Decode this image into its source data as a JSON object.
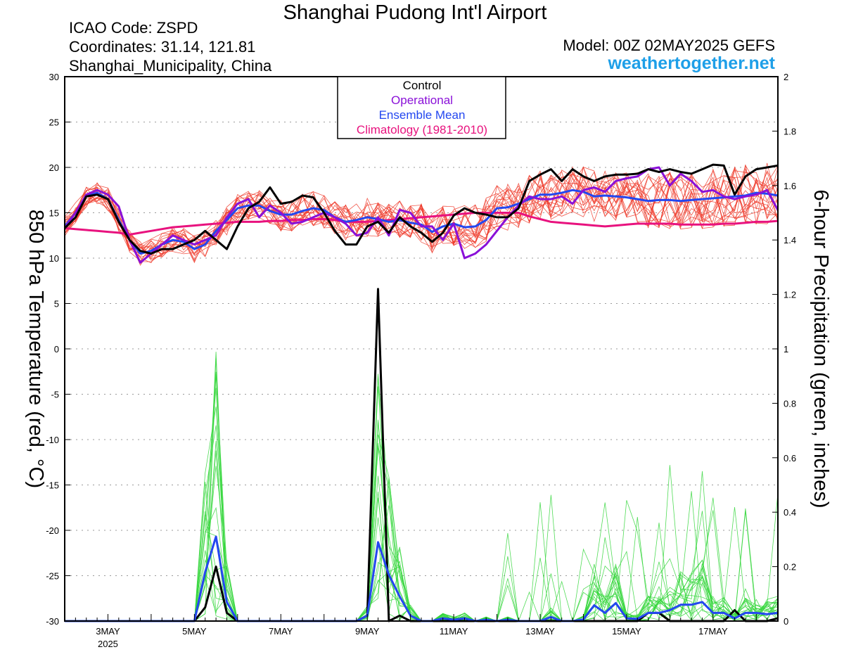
{
  "header": {
    "title": "Shanghai Pudong Int'l Airport",
    "icao": "ICAO Code: ZSPD",
    "coordinates": "Coordinates: 31.14, 121.81",
    "location": "Shanghai_Municipality, China",
    "model": "Model: 00Z 02MAY2025 GEFS",
    "site": "weathertogether.net"
  },
  "chart_data": {
    "type": "line",
    "start_date": "2025-05-02",
    "legend": {
      "placement": "top-center",
      "entries": [
        {
          "label": "Control",
          "color": "#000000"
        },
        {
          "label": "Operational",
          "color": "#8a10d8"
        },
        {
          "label": "Ensemble Mean",
          "color": "#2347f0"
        },
        {
          "label": "Climatology (1981-2010)",
          "color": "#e8127e"
        }
      ]
    },
    "left_axis": {
      "label": "850 hPa Temperature (red, °C)",
      "ylim": [
        -30,
        30
      ],
      "ticks": [
        -30,
        -25,
        -20,
        -15,
        -10,
        -5,
        0,
        5,
        10,
        15,
        20,
        25,
        30
      ]
    },
    "right_axis": {
      "label": "6-hour Precipitation (green, inches)",
      "ylim": [
        0,
        2
      ],
      "ticks": [
        0,
        0.2,
        0.4,
        0.6,
        0.8,
        1,
        1.2,
        1.4,
        1.6,
        1.8,
        2
      ]
    },
    "x_axis": {
      "xlim": [
        "2025-05-02 00Z",
        "2025-05-18 06Z"
      ],
      "step": "6-hour",
      "ticks": [
        {
          "label": "3MAY",
          "sublabel": "2025",
          "day": 1
        },
        {
          "label": "5MAY",
          "day": 3
        },
        {
          "label": "7MAY",
          "day": 5
        },
        {
          "label": "9MAY",
          "day": 7
        },
        {
          "label": "11MAY",
          "day": 9
        },
        {
          "label": "13MAY",
          "day": 11
        },
        {
          "label": "15MAY",
          "day": 13
        },
        {
          "label": "17MAY",
          "day": 15
        }
      ]
    },
    "grid": true,
    "colors": {
      "member_temp": "#ee3b2c",
      "member_precip": "#33d63a"
    },
    "series": [
      {
        "color": "#000000",
        "axis": "temp",
        "role": "control_temp",
        "values": [
          13.3,
          14.5,
          16.8,
          17.0,
          16.5,
          14.0,
          12.0,
          10.8,
          10.5,
          11.0,
          11.0,
          11.5,
          12.0,
          13.0,
          12.0,
          11.0,
          13.5,
          15.5,
          16.2,
          17.8,
          16.0,
          16.2,
          16.9,
          16.7,
          15.0,
          13.0,
          11.5,
          11.5,
          13.5,
          14.0,
          12.8,
          14.5,
          13.5,
          12.8,
          11.8,
          12.8,
          14.7,
          15.5,
          15.0,
          14.8,
          14.5,
          14.5,
          15.5,
          18.5,
          19.2,
          19.8,
          18.5,
          19.8,
          19.0,
          18.5,
          19.0,
          19.2,
          19.2,
          19.3,
          19.8,
          19.5,
          19.8,
          19.5,
          19.3,
          19.8,
          20.3,
          20.2,
          17.0,
          19.0,
          19.8,
          20.0,
          20.2
        ]
      },
      {
        "color": "#8a10d8",
        "axis": "temp",
        "role": "operational_temp",
        "values": [
          13.3,
          15.0,
          17.0,
          17.5,
          17.0,
          15.7,
          12.0,
          9.5,
          10.5,
          11.5,
          12.5,
          12.0,
          11.5,
          12.0,
          12.5,
          14.5,
          16.0,
          16.5,
          14.5,
          15.8,
          15.0,
          13.8,
          14.0,
          14.5,
          15.0,
          14.5,
          13.8,
          12.5,
          12.8,
          14.5,
          12.5,
          15.3,
          15.0,
          13.5,
          13.5,
          12.0,
          13.8,
          10.0,
          10.5,
          11.5,
          13.0,
          14.5,
          15.8,
          16.8,
          16.5,
          16.5,
          16.8,
          16.0,
          17.5,
          17.8,
          17.3,
          18.5,
          18.8,
          19.0,
          19.8,
          20.0,
          18.0,
          19.3,
          18.5,
          17.3,
          17.5,
          16.8,
          16.5,
          16.8,
          17.0,
          17.5,
          15.3
        ]
      },
      {
        "color": "#2347f0",
        "axis": "temp",
        "role": "ensemble_mean_temp",
        "values": [
          13.5,
          15.0,
          16.8,
          17.2,
          16.5,
          14.2,
          12.0,
          10.5,
          10.8,
          11.5,
          12.0,
          11.8,
          11.0,
          11.5,
          13.0,
          14.2,
          15.5,
          15.8,
          15.8,
          15.2,
          14.8,
          14.8,
          15.2,
          15.5,
          15.3,
          14.5,
          14.0,
          14.2,
          14.5,
          14.3,
          14.0,
          14.2,
          13.9,
          13.7,
          12.9,
          13.5,
          13.8,
          13.4,
          13.5,
          14.2,
          15.5,
          15.6,
          16.0,
          16.5,
          17.0,
          17.0,
          17.2,
          17.5,
          17.3,
          16.8,
          16.9,
          16.8,
          16.7,
          16.5,
          16.3,
          16.4,
          16.4,
          16.3,
          16.4,
          16.5,
          16.6,
          16.7,
          16.8,
          16.9,
          17.2,
          17.1,
          16.9
        ]
      },
      {
        "color": "#e8127e",
        "axis": "temp",
        "role": "climatology_temp",
        "values": [
          13.3,
          13.2,
          13.1,
          13.0,
          12.9,
          12.8,
          12.6,
          12.8,
          13.0,
          13.2,
          13.4,
          13.5,
          13.6,
          13.7,
          13.8,
          13.9,
          14.0,
          14.0,
          14.0,
          14.1,
          14.1,
          14.2,
          14.2,
          14.3,
          14.3,
          14.2,
          14.0,
          14.0,
          14.0,
          14.1,
          14.2,
          14.3,
          14.4,
          14.5,
          14.6,
          14.7,
          14.8,
          14.9,
          15.0,
          15.0,
          15.0,
          15.0,
          15.0,
          14.6,
          14.3,
          14.0,
          13.9,
          13.8,
          13.7,
          13.6,
          13.5,
          13.6,
          13.7,
          13.8,
          13.8,
          13.8,
          13.8,
          13.7,
          13.7,
          13.7,
          13.7,
          13.8,
          13.8,
          13.9,
          14.0,
          14.0,
          14.1
        ]
      },
      {
        "color": "#000000",
        "axis": "precip",
        "role": "control_precip",
        "values": [
          0,
          0,
          0,
          0,
          0,
          0,
          0,
          0,
          0,
          0,
          0,
          0,
          0,
          0.05,
          0.2,
          0.03,
          0,
          0,
          0,
          0,
          0,
          0,
          0,
          0,
          0,
          0,
          0,
          0,
          0.02,
          1.22,
          0,
          0.02,
          0,
          0,
          0,
          0,
          0,
          0,
          0,
          0,
          0,
          0,
          0,
          0,
          0,
          0,
          0,
          0,
          0,
          0,
          0,
          0,
          0,
          0,
          0.03,
          0.03,
          0,
          0,
          0,
          0,
          0,
          0,
          0.04,
          0,
          0,
          0,
          0.01
        ]
      },
      {
        "color": "#2347f0",
        "axis": "precip",
        "role": "ensemble_mean_precip",
        "values": [
          0,
          0,
          0,
          0,
          0,
          0,
          0,
          0,
          0,
          0,
          0,
          0,
          0,
          0.18,
          0.31,
          0.07,
          0,
          0,
          0,
          0,
          0,
          0,
          0,
          0,
          0,
          0,
          0,
          0,
          0.02,
          0.29,
          0.17,
          0.09,
          0.02,
          0,
          0,
          0.01,
          0.005,
          0.01,
          0,
          0.005,
          0,
          0.005,
          0,
          0,
          0,
          0.015,
          0,
          0,
          0.006,
          0.058,
          0.03,
          0.066,
          0.01,
          0.008,
          0.03,
          0.03,
          0.04,
          0.06,
          0.06,
          0.07,
          0.03,
          0.03,
          0.01,
          0.03,
          0.03,
          0.025,
          0.03
        ]
      }
    ]
  }
}
